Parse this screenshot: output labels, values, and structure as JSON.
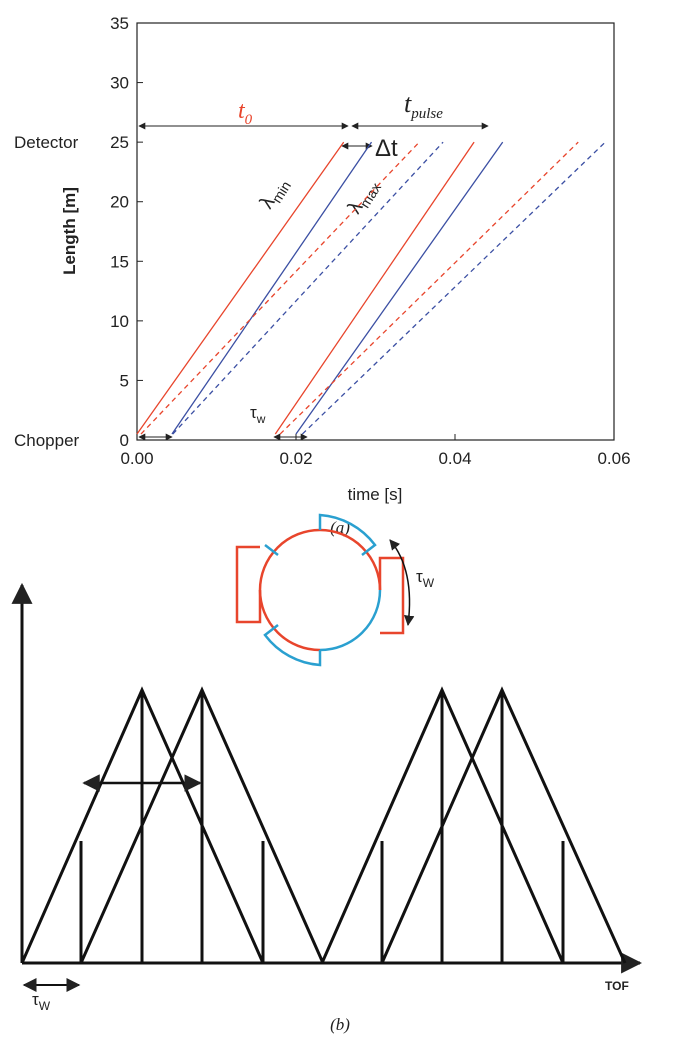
{
  "chart_data": {
    "type": "line",
    "xlabel": "time [s]",
    "ylabel": "Length [m]",
    "caption": "(a)",
    "xlim": [
      0,
      0.06
    ],
    "ylim": [
      0,
      35
    ],
    "xticks": [
      {
        "value": 0,
        "label": "0.00"
      },
      {
        "value": 0.02,
        "label": "0.02"
      },
      {
        "value": 0.04,
        "label": "0.04"
      },
      {
        "value": 0.06,
        "label": "0.06"
      }
    ],
    "yticks": [
      0,
      5,
      10,
      15,
      20,
      25,
      30,
      35
    ],
    "level_labels": [
      {
        "value": 25,
        "label": "Detector"
      },
      {
        "value": 0,
        "label": "Chopper"
      }
    ],
    "series": [
      {
        "color": "#e8452c",
        "dashed": false,
        "x": [
          0.0,
          0.026
        ],
        "values": [
          0.5,
          25
        ]
      },
      {
        "color": "#3b4fa3",
        "dashed": false,
        "x": [
          0.0044,
          0.0295
        ],
        "values": [
          0.5,
          25
        ]
      },
      {
        "color": "#e8452c",
        "dashed": true,
        "x": [
          0.0005,
          0.0355
        ],
        "values": [
          0.5,
          25
        ]
      },
      {
        "color": "#3b4fa3",
        "dashed": true,
        "x": [
          0.0045,
          0.0385
        ],
        "values": [
          0.5,
          25
        ]
      },
      {
        "color": "#e8452c",
        "dashed": false,
        "x": [
          0.0174,
          0.0424
        ],
        "values": [
          0.5,
          25
        ]
      },
      {
        "color": "#3b4fa3",
        "dashed": false,
        "x": [
          0.02,
          0.046
        ],
        "values": [
          0.5,
          25
        ]
      },
      {
        "color": "#e8452c",
        "dashed": true,
        "x": [
          0.018,
          0.0555
        ],
        "values": [
          0.5,
          25
        ]
      },
      {
        "color": "#3b4fa3",
        "dashed": true,
        "x": [
          0.0208,
          0.0589
        ],
        "values": [
          0.5,
          25
        ]
      }
    ],
    "annotations": {
      "t0": {
        "text": "t",
        "sub": "0"
      },
      "tpulse": {
        "text": "t",
        "sub": "pulse"
      },
      "dt": "Δt",
      "lmin": {
        "text": "λ",
        "sub": "min"
      },
      "lmax": {
        "text": "λ",
        "sub": "max"
      },
      "tw": {
        "text": "τ",
        "sub": "w"
      }
    }
  },
  "panel_b": {
    "chopper_label": {
      "text": "τ",
      "sub": "W"
    },
    "axis_label": "TOF",
    "width_label": {
      "text": "τ",
      "sub": "W"
    },
    "caption": "(b)"
  }
}
